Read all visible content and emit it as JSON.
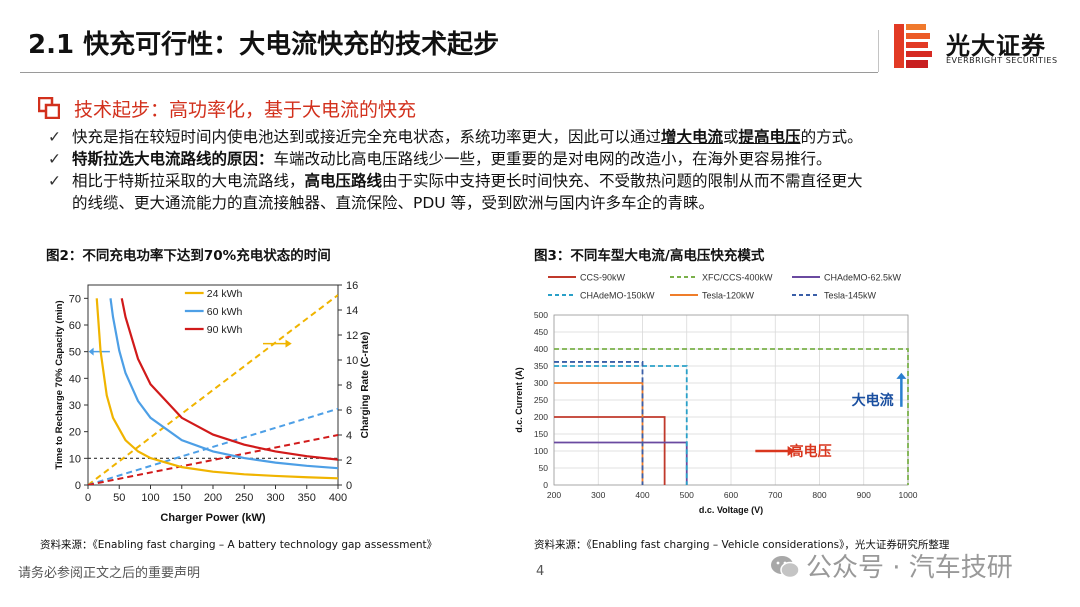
{
  "header": {
    "title": "2.1 快充可行性：大电流快充的技术起步",
    "logo_cn": "光大证券",
    "logo_en": "EVERBRIGHT SECURITIES"
  },
  "section": {
    "title": "技术起步：高功率化，基于大电流的快充"
  },
  "bullets": {
    "b1": {
      "p1": "快充是指在较短时间内使电池达到或接近完全充电状态，系统功率更大，因此可以通过",
      "u1": "增大电流",
      "p2": "或",
      "u2": "提高电压",
      "p3": "的方式。"
    },
    "b2": {
      "bold": "特斯拉选大电流路线的原因：",
      "p1": "车端改动比高电压路线少一些，更重要的是对电网的改造小，在海外更容易推行。"
    },
    "b3": {
      "p1": "相比于特斯拉采取的大电流路线，",
      "bold": "高电压路线",
      "p2": "由于实际中支持更长时间快充、不受散热问题的限制从而不需直径更大",
      "line2": "的线缆、更大通流能力的直流接触器、直流保险、PDU 等，受到欧洲与国内许多车企的青睐。"
    }
  },
  "fig2": {
    "title": "图2：不同充电功率下达到70%充电状态的时间",
    "source": "资料来源：《Enabling fast charging – A battery technology gap assessment》"
  },
  "fig3": {
    "title": "图3：不同车型大电流/高电压快充模式",
    "source": "资料来源：《Enabling fast charging – Vehicle considerations》，光大证券研究所整理",
    "annotation_current": "大电流",
    "annotation_voltage": "高电压"
  },
  "footer": {
    "disclaimer": "请务必参阅正文之后的重要声明",
    "page": "4",
    "watermark": "公众号 · 汽车技研"
  },
  "colors": {
    "accent_red": "#d2301c",
    "kwh24": "#f0b400",
    "kwh60": "#4d9fe6",
    "kwh90": "#d11a1a",
    "ccs": "#c0392b",
    "xfc": "#7ab04a",
    "chademo62": "#6a4aa0",
    "chademo150": "#2aa0c8",
    "tesla120": "#ef7d2a",
    "tesla145": "#3a5fa8"
  },
  "chart_data": [
    {
      "type": "line",
      "title": "",
      "xlabel": "Charger Power (kW)",
      "ylabel": "Time to Recharge 70% Capacity (min)",
      "y2label": "Charging Rate (C-rate)",
      "xlim": [
        0,
        400
      ],
      "ylim": [
        0,
        75
      ],
      "y2lim": [
        0,
        16
      ],
      "xticks": [
        "0",
        "50",
        "100",
        "150",
        "200",
        "250",
        "300",
        "350",
        "400"
      ],
      "yticks": [
        "0",
        "10",
        "20",
        "30",
        "40",
        "50",
        "60",
        "70"
      ],
      "y2ticks": [
        "0",
        "2",
        "4",
        "6",
        "8",
        "10",
        "12",
        "14",
        "16"
      ],
      "legend_position": "top-center",
      "reference_line_y": 10,
      "time_series": [
        {
          "name": "24 kWh",
          "color": "#f0b400",
          "x": [
            14,
            20,
            30,
            40,
            60,
            80,
            100,
            150,
            200,
            250,
            300,
            350,
            400
          ],
          "y": [
            70,
            50.4,
            33.6,
            25.2,
            16.8,
            12.6,
            10.1,
            6.7,
            5.0,
            4.0,
            3.4,
            2.9,
            2.5
          ]
        },
        {
          "name": "60 kWh",
          "color": "#4d9fe6",
          "x": [
            36,
            40,
            50,
            60,
            80,
            100,
            150,
            200,
            250,
            300,
            350,
            400
          ],
          "y": [
            70,
            63,
            50.4,
            42,
            31.5,
            25.2,
            16.8,
            12.6,
            10.1,
            8.4,
            7.2,
            6.3
          ]
        },
        {
          "name": "90 kWh",
          "color": "#d11a1a",
          "x": [
            54,
            60,
            80,
            100,
            150,
            200,
            250,
            300,
            350,
            400
          ],
          "y": [
            70,
            63,
            47.3,
            37.8,
            25.2,
            18.9,
            15.1,
            12.6,
            10.8,
            9.5
          ]
        }
      ],
      "crate_series": [
        {
          "name": "24 kWh",
          "color": "#f0b400",
          "x": [
            0,
            400
          ],
          "y2": [
            0,
            15.2
          ]
        },
        {
          "name": "60 kWh",
          "color": "#4d9fe6",
          "x": [
            0,
            400
          ],
          "y2": [
            0,
            6.1
          ]
        },
        {
          "name": "90 kWh",
          "color": "#d11a1a",
          "x": [
            0,
            400
          ],
          "y2": [
            0,
            4.0
          ]
        }
      ]
    },
    {
      "type": "line",
      "title": "",
      "xlabel": "d.c. Voltage (V)",
      "ylabel": "d.c. Current (A)",
      "xlim": [
        200,
        1000
      ],
      "ylim": [
        0,
        500
      ],
      "xticks": [
        "200",
        "300",
        "400",
        "500",
        "600",
        "700",
        "800",
        "900",
        "1000"
      ],
      "yticks": [
        "0",
        "50",
        "100",
        "150",
        "200",
        "250",
        "300",
        "350",
        "400",
        "450",
        "500"
      ],
      "legend_position": "top",
      "series": [
        {
          "name": "CCS-90kW",
          "color": "#c0392b",
          "dash": false,
          "voltage": 450,
          "current": 200
        },
        {
          "name": "XFC/CCS-400kW",
          "color": "#7ab04a",
          "dash": true,
          "voltage": 1000,
          "current": 400
        },
        {
          "name": "CHAdeMO-62.5kW",
          "color": "#6a4aa0",
          "dash": false,
          "voltage": 500,
          "current": 125
        },
        {
          "name": "CHAdeMO-150kW",
          "color": "#2aa0c8",
          "dash": true,
          "voltage": 500,
          "current": 350
        },
        {
          "name": "Tesla-120kW",
          "color": "#ef7d2a",
          "dash": false,
          "voltage": 400,
          "current": 300
        },
        {
          "name": "Tesla-145kW",
          "color": "#3a5fa8",
          "dash": true,
          "voltage": 400,
          "current": 362
        }
      ]
    }
  ]
}
